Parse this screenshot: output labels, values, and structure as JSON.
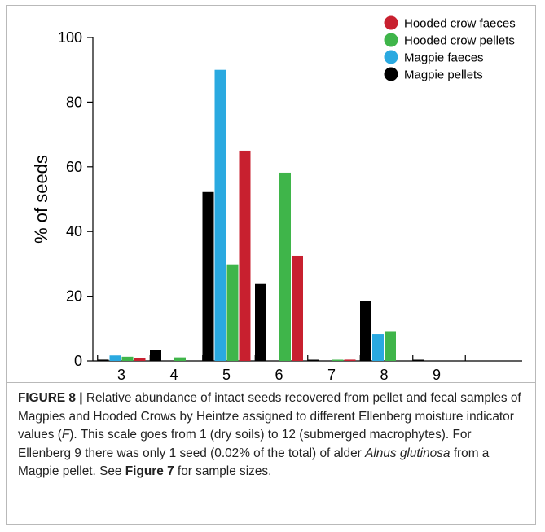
{
  "chart_data": {
    "type": "bar",
    "ylabel": "% of seeds",
    "xlabel": "",
    "ylim": [
      0,
      100
    ],
    "yticks": [
      0,
      20,
      40,
      60,
      80,
      100
    ],
    "categories": [
      "3",
      "4",
      "5",
      "6",
      "7",
      "8",
      "9"
    ],
    "legend_position": "top-right",
    "series": [
      {
        "name": "Magpie pellets",
        "color": "#000000",
        "values": [
          0.4,
          3.3,
          52.2,
          24.0,
          0.3,
          18.5,
          0.02
        ]
      },
      {
        "name": "Magpie faeces",
        "color": "#2aa9e0",
        "values": [
          1.7,
          0,
          90.0,
          0,
          0,
          8.3,
          0
        ]
      },
      {
        "name": "Hooded crow pellets",
        "color": "#3fb54a",
        "values": [
          1.3,
          1.1,
          29.8,
          58.2,
          0.3,
          9.2,
          0
        ]
      },
      {
        "name": "Hooded crow faeces",
        "color": "#c8202f",
        "values": [
          0.9,
          0,
          65.0,
          32.5,
          0.4,
          0,
          0
        ]
      }
    ],
    "legend_order": [
      "Hooded crow faeces",
      "Hooded crow pellets",
      "Magpie faeces",
      "Magpie pellets"
    ]
  },
  "caption": {
    "label": "FIGURE 8 |",
    "part1": " Relative abundance of intact seeds recovered from pellet and fecal samples of Magpies and Hooded Crows by Heintze assigned to different Ellenberg moisture indicator values (",
    "italic1": "F",
    "part2": "). This scale goes from 1 (dry soils) to 12 (submerged macrophytes). For Ellenberg 9 there was only 1 seed (0.02% of the total) of alder ",
    "italic2": "Alnus glutinosa",
    "part3": " from a Magpie pellet. See ",
    "bold_ref": "Figure 7",
    "part4": " for sample sizes."
  }
}
